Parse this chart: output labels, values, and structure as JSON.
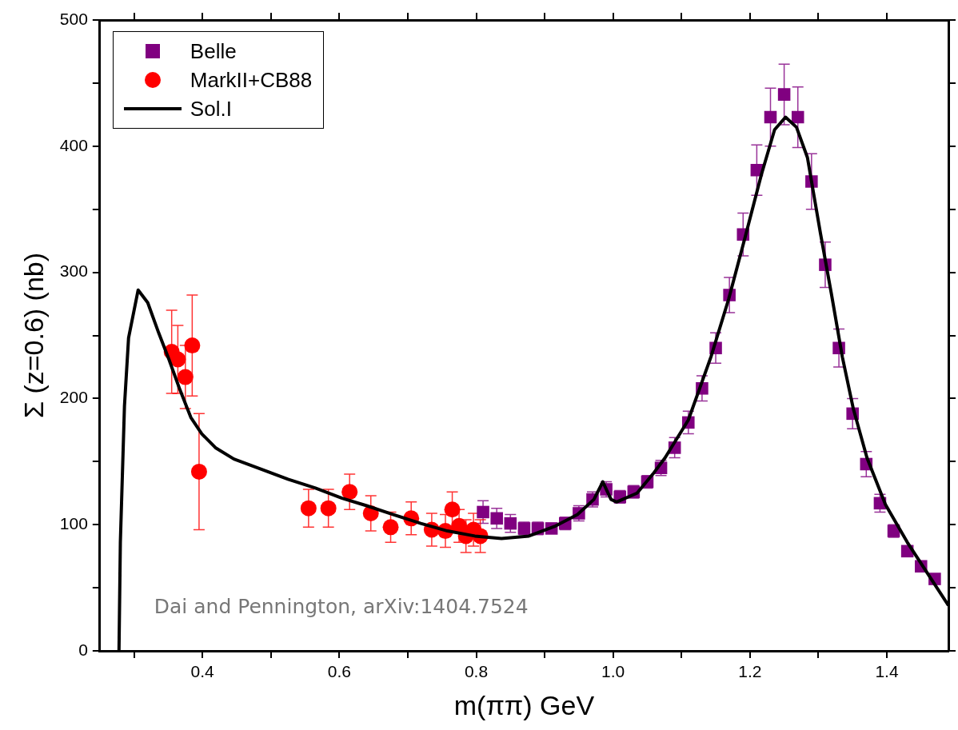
{
  "chart_data": {
    "type": "scatter",
    "xlabel": "m(ππ) GeV",
    "ylabel": "Σ (z=0.6) (nb)",
    "xlim": [
      0.25,
      1.49
    ],
    "xticks": [
      {
        "value": 0.3,
        "label": null
      },
      0.4,
      {
        "value": 0.5,
        "label": null
      },
      0.6,
      {
        "value": 0.7,
        "label": null
      },
      0.8,
      {
        "value": 0.9,
        "label": null
      },
      {
        "value": 1,
        "label": "1.0"
      },
      {
        "value": 1.1,
        "label": null
      },
      1.2,
      {
        "value": 1.3,
        "label": null
      },
      1.4
    ],
    "ylim": [
      0,
      500
    ],
    "yticks": [
      0,
      {
        "value": 50,
        "label": null
      },
      100,
      {
        "value": 150,
        "label": null
      },
      200,
      {
        "value": 250,
        "label": null
      },
      300,
      {
        "value": 350,
        "label": null
      },
      400,
      {
        "value": 450,
        "label": null
      },
      500
    ],
    "grid": false,
    "legend": "top left",
    "annotations": [
      "Dai and Pennington, arXiv:1404.7524"
    ],
    "series": [
      {
        "name": "Belle",
        "type": "scatter",
        "marker": "square",
        "color": "#800080",
        "x": [
          0.81,
          0.83,
          0.85,
          0.87,
          0.89,
          0.91,
          0.93,
          0.95,
          0.97,
          0.99,
          1.01,
          1.03,
          1.05,
          1.07,
          1.09,
          1.11,
          1.13,
          1.15,
          1.17,
          1.19,
          1.21,
          1.23,
          1.25,
          1.27,
          1.29,
          1.31,
          1.33,
          1.35,
          1.37,
          1.39,
          1.41,
          1.43,
          1.45,
          1.47
        ],
        "values": [
          110,
          105,
          101,
          97,
          97,
          97,
          101,
          109,
          120,
          128,
          122,
          126,
          134,
          145,
          161,
          181,
          208,
          240,
          282,
          330,
          381,
          423,
          441,
          423,
          372,
          306,
          240,
          188,
          148,
          117,
          95,
          79,
          67,
          57
        ],
        "errors": [
          9,
          8,
          7,
          5,
          5,
          4,
          5,
          6,
          6,
          6,
          5,
          5,
          5,
          6,
          8,
          9,
          10,
          12,
          14,
          17,
          20,
          23,
          24,
          24,
          22,
          18,
          15,
          12,
          10,
          7,
          5,
          null,
          null,
          null
        ]
      },
      {
        "name": "MarkII+CB88",
        "type": "scatter",
        "marker": "circle",
        "color": "#ff0000",
        "x": [
          0.355,
          0.364,
          0.375,
          0.385,
          0.395,
          0.555,
          0.584,
          0.615,
          0.646,
          0.675,
          0.705,
          0.735,
          0.755,
          0.765,
          0.775,
          0.785,
          0.796,
          0.806
        ],
        "values": [
          237,
          231,
          217,
          242,
          142,
          113,
          113,
          126,
          109,
          98,
          105,
          96,
          95,
          112,
          99,
          91,
          96,
          91
        ],
        "errors": [
          33,
          27,
          25,
          40,
          46,
          15,
          15,
          14,
          14,
          12,
          13,
          13,
          13,
          14,
          13,
          13,
          13,
          13
        ]
      },
      {
        "name": "Sol.I",
        "type": "line",
        "marker": "none",
        "line_style": "solid",
        "color": "#000000",
        "x": [
          0.278,
          0.28,
          0.286,
          0.292,
          0.306,
          0.32,
          0.336,
          0.351,
          0.367,
          0.383,
          0.399,
          0.419,
          0.446,
          0.486,
          0.525,
          0.565,
          0.604,
          0.64,
          0.679,
          0.719,
          0.758,
          0.798,
          0.837,
          0.877,
          0.916,
          0.948,
          0.972,
          0.985,
          0.997,
          1.005,
          1.035,
          1.058,
          1.076,
          1.11,
          1.143,
          1.169,
          1.193,
          1.217,
          1.236,
          1.252,
          1.268,
          1.284,
          1.303,
          1.319,
          1.335,
          1.351,
          1.371,
          1.398,
          1.43,
          1.454,
          1.49
        ],
        "values": [
          0,
          86,
          194,
          248,
          286,
          276,
          252,
          231,
          207,
          185,
          172,
          161,
          152,
          144,
          136,
          129,
          121,
          115,
          108,
          101,
          95,
          91,
          89,
          91,
          99,
          108,
          120,
          134,
          120,
          118,
          125,
          140,
          153,
          183,
          233,
          279,
          328,
          378,
          413,
          423,
          415,
          391,
          331,
          283,
          233,
          192,
          153,
          116,
          86,
          66,
          36
        ]
      }
    ]
  }
}
